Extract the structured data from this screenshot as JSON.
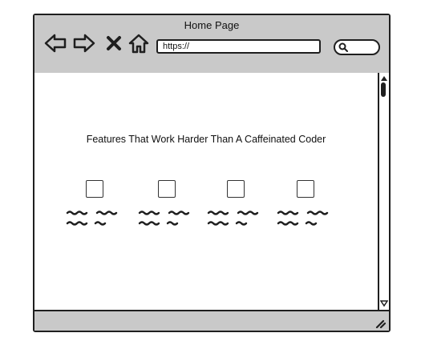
{
  "window": {
    "title": "Home Page"
  },
  "toolbar": {
    "back_icon": "back-arrow-icon",
    "forward_icon": "forward-arrow-icon",
    "stop_icon": "close-icon",
    "home_icon": "home-icon"
  },
  "address_bar": {
    "value": "https://"
  },
  "search": {
    "icon": "search-icon"
  },
  "main": {
    "heading": "Features That Work Harder Than A Caffeinated Coder",
    "features": [
      {
        "icon": "checkbox-placeholder"
      },
      {
        "icon": "checkbox-placeholder"
      },
      {
        "icon": "checkbox-placeholder"
      },
      {
        "icon": "checkbox-placeholder"
      }
    ]
  },
  "colors": {
    "chrome": "#c9c9c9",
    "stroke": "#1f1f1f",
    "background": "#ffffff"
  }
}
